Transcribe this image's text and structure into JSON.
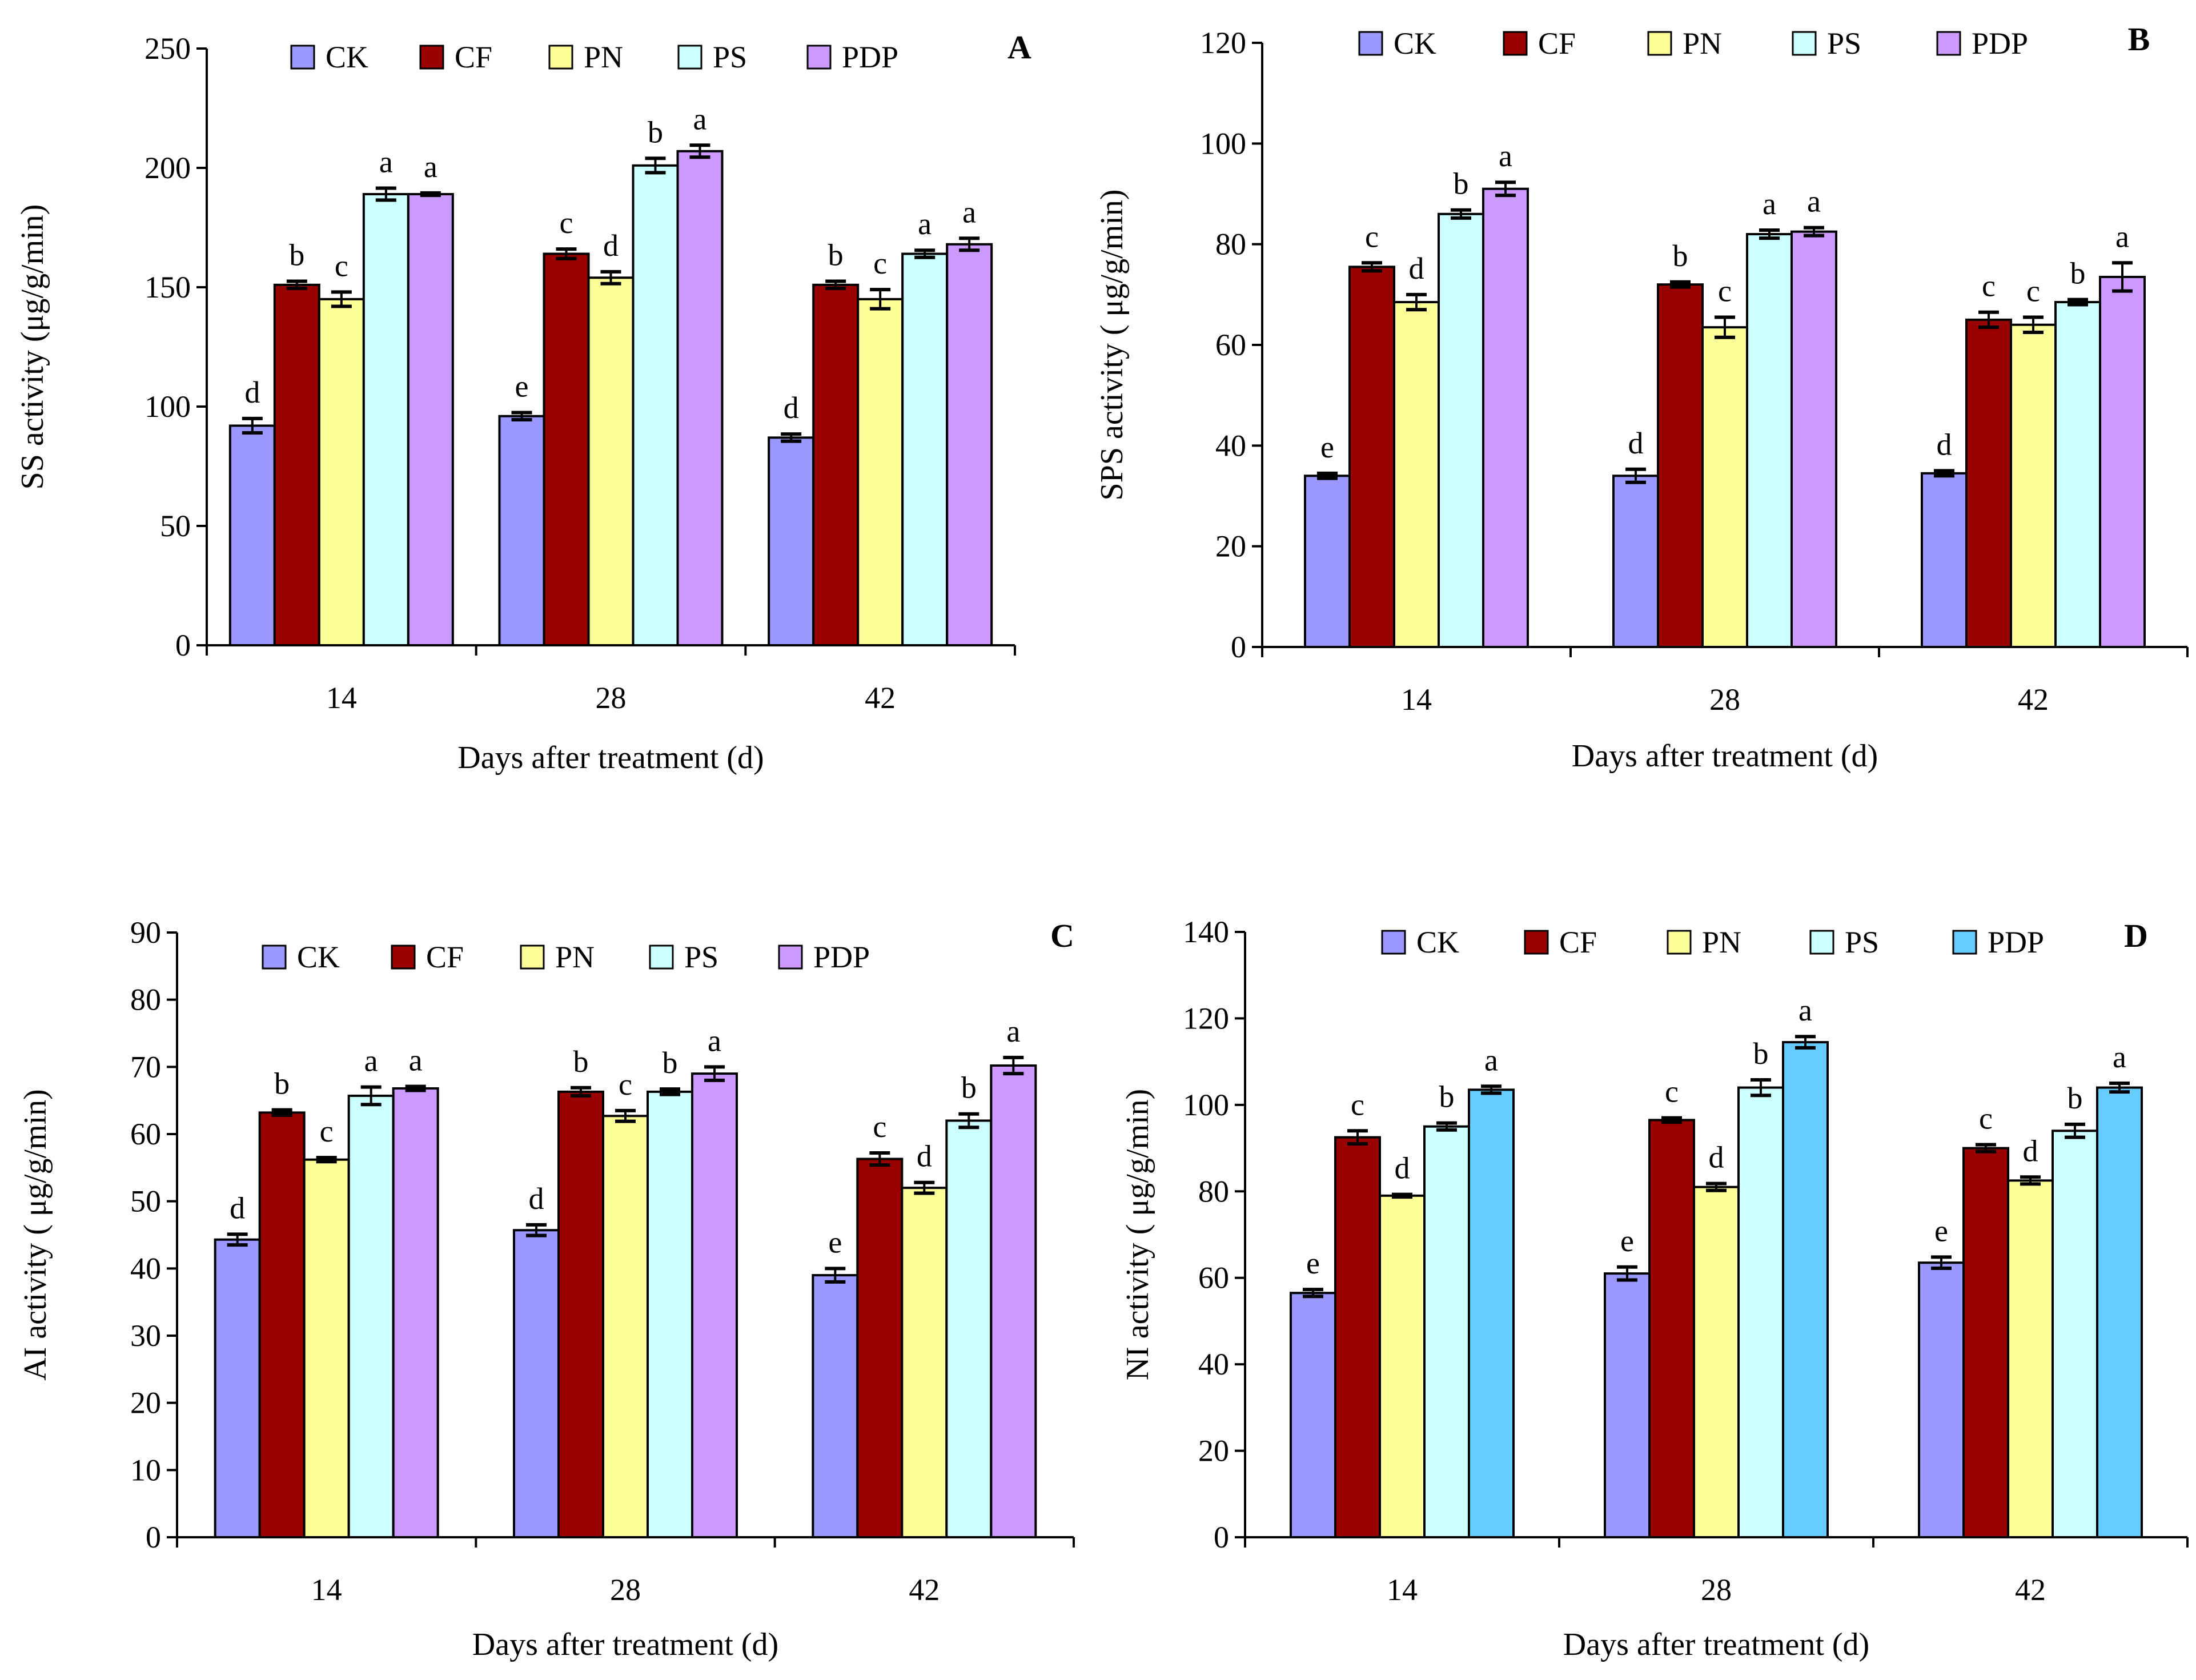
{
  "figure": {
    "panel_count": 4
  },
  "chart_data": [
    {
      "id": "A",
      "type": "bar",
      "panel_label": "A",
      "title": "",
      "xlabel": "Days after treatment (d)",
      "ylabel": "SS activity (μg/g/min)",
      "categories": [
        "14",
        "28",
        "42"
      ],
      "ylim": [
        0,
        250
      ],
      "ytick_step": 50,
      "yticks": [
        "0",
        "50",
        "100",
        "150",
        "200",
        "250"
      ],
      "legend_position": "top",
      "series": [
        {
          "name": "CK",
          "color": "#9999ff",
          "values": [
            92,
            96,
            87
          ],
          "errors": [
            3,
            1.5,
            1.5
          ],
          "letters": [
            "d",
            "e",
            "d"
          ]
        },
        {
          "name": "CF",
          "color": "#990000",
          "values": [
            151,
            164,
            151
          ],
          "errors": [
            1.5,
            2,
            1.5
          ],
          "letters": [
            "b",
            "c",
            "b"
          ]
        },
        {
          "name": "PN",
          "color": "#ffff99",
          "values": [
            145,
            154,
            145
          ],
          "errors": [
            3,
            2.5,
            4
          ],
          "letters": [
            "c",
            "d",
            "c"
          ]
        },
        {
          "name": "PS",
          "color": "#ccffff",
          "values": [
            189,
            201,
            164
          ],
          "errors": [
            2.5,
            3,
            1.5
          ],
          "letters": [
            "a",
            "b",
            "a"
          ]
        },
        {
          "name": "PDP",
          "color": "#cc99ff",
          "values": [
            189,
            207,
            168
          ],
          "errors": [
            0.5,
            2.5,
            2.5
          ],
          "letters": [
            "a",
            "a",
            "a"
          ]
        }
      ]
    },
    {
      "id": "B",
      "type": "bar",
      "panel_label": "B",
      "title": "",
      "xlabel": "Days after treatment (d)",
      "ylabel": "SPS activity ( μg/g/min)",
      "categories": [
        "14",
        "28",
        "42"
      ],
      "ylim": [
        0,
        120
      ],
      "ytick_step": 20,
      "yticks": [
        "0",
        "20",
        "40",
        "60",
        "80",
        "100",
        "120"
      ],
      "legend_position": "top",
      "series": [
        {
          "name": "CK",
          "color": "#9999ff",
          "values": [
            34,
            34,
            34.5
          ],
          "errors": [
            0.5,
            1.3,
            0.5
          ],
          "letters": [
            "e",
            "d",
            "d"
          ]
        },
        {
          "name": "CF",
          "color": "#990000",
          "values": [
            75.5,
            72,
            65
          ],
          "errors": [
            0.8,
            0.5,
            1.5
          ],
          "letters": [
            "c",
            "b",
            "c"
          ]
        },
        {
          "name": "PN",
          "color": "#ffff99",
          "values": [
            68.5,
            63.5,
            64
          ],
          "errors": [
            1.5,
            2,
            1.5
          ],
          "letters": [
            "d",
            "c",
            "c"
          ]
        },
        {
          "name": "PS",
          "color": "#ccffff",
          "values": [
            86,
            82,
            68.5
          ],
          "errors": [
            0.8,
            0.8,
            0.5
          ],
          "letters": [
            "b",
            "a",
            "b"
          ]
        },
        {
          "name": "PDP",
          "color": "#cc99ff",
          "values": [
            91,
            82.5,
            73.5
          ],
          "errors": [
            1.3,
            0.8,
            2.8
          ],
          "letters": [
            "a",
            "a",
            "a"
          ]
        }
      ]
    },
    {
      "id": "C",
      "type": "bar",
      "panel_label": "C",
      "title": "",
      "xlabel": "Days after treatment (d)",
      "ylabel": "AI activity ( μg/g/min)",
      "categories": [
        "14",
        "28",
        "42"
      ],
      "ylim": [
        0,
        90
      ],
      "ytick_step": 10,
      "yticks": [
        "0",
        "10",
        "20",
        "30",
        "40",
        "50",
        "60",
        "70",
        "80",
        "90"
      ],
      "legend_position": "top",
      "series": [
        {
          "name": "CK",
          "color": "#9999ff",
          "values": [
            44.3,
            45.7,
            39
          ],
          "errors": [
            0.8,
            0.8,
            1
          ],
          "letters": [
            "d",
            "d",
            "e"
          ]
        },
        {
          "name": "CF",
          "color": "#990000",
          "values": [
            63.2,
            66.3,
            56.3
          ],
          "errors": [
            0.4,
            0.6,
            0.9
          ],
          "letters": [
            "b",
            "b",
            "c"
          ]
        },
        {
          "name": "PN",
          "color": "#ffff99",
          "values": [
            56.2,
            62.7,
            52
          ],
          "errors": [
            0.3,
            0.8,
            0.8
          ],
          "letters": [
            "c",
            "c",
            "d"
          ]
        },
        {
          "name": "PS",
          "color": "#ccffff",
          "values": [
            65.7,
            66.3,
            62
          ],
          "errors": [
            1.3,
            0.4,
            1
          ],
          "letters": [
            "a",
            "b",
            "b"
          ]
        },
        {
          "name": "PDP",
          "color": "#cc99ff",
          "values": [
            66.8,
            69,
            70.2
          ],
          "errors": [
            0.3,
            1,
            1.2
          ],
          "letters": [
            "a",
            "a",
            "a"
          ]
        }
      ]
    },
    {
      "id": "D",
      "type": "bar",
      "panel_label": "D",
      "title": "",
      "xlabel": "Days after treatment (d)",
      "ylabel": "NI activity ( μg/g/min)",
      "categories": [
        "14",
        "28",
        "42"
      ],
      "ylim": [
        0,
        140
      ],
      "ytick_step": 20,
      "yticks": [
        "0",
        "20",
        "40",
        "60",
        "80",
        "100",
        "120",
        "140"
      ],
      "legend_position": "top",
      "series": [
        {
          "name": "CK",
          "color": "#9999ff",
          "values": [
            56.5,
            61,
            63.5
          ],
          "errors": [
            0.8,
            1.5,
            1.3
          ],
          "letters": [
            "e",
            "e",
            "e"
          ]
        },
        {
          "name": "CF",
          "color": "#990000",
          "values": [
            92.5,
            96.5,
            90
          ],
          "errors": [
            1.5,
            0.5,
            0.8
          ],
          "letters": [
            "c",
            "c",
            "c"
          ]
        },
        {
          "name": "PN",
          "color": "#ffff99",
          "values": [
            79,
            81,
            82.5
          ],
          "errors": [
            0.3,
            0.8,
            0.8
          ],
          "letters": [
            "d",
            "d",
            "d"
          ]
        },
        {
          "name": "PS",
          "color": "#ccffff",
          "values": [
            95,
            104,
            94
          ],
          "errors": [
            0.8,
            1.8,
            1.5
          ],
          "letters": [
            "b",
            "b",
            "b"
          ]
        },
        {
          "name": "PDP",
          "color": "#66ccff",
          "values": [
            103.5,
            114.5,
            104
          ],
          "errors": [
            0.8,
            1.3,
            1
          ],
          "letters": [
            "a",
            "a",
            "a"
          ]
        }
      ]
    }
  ]
}
